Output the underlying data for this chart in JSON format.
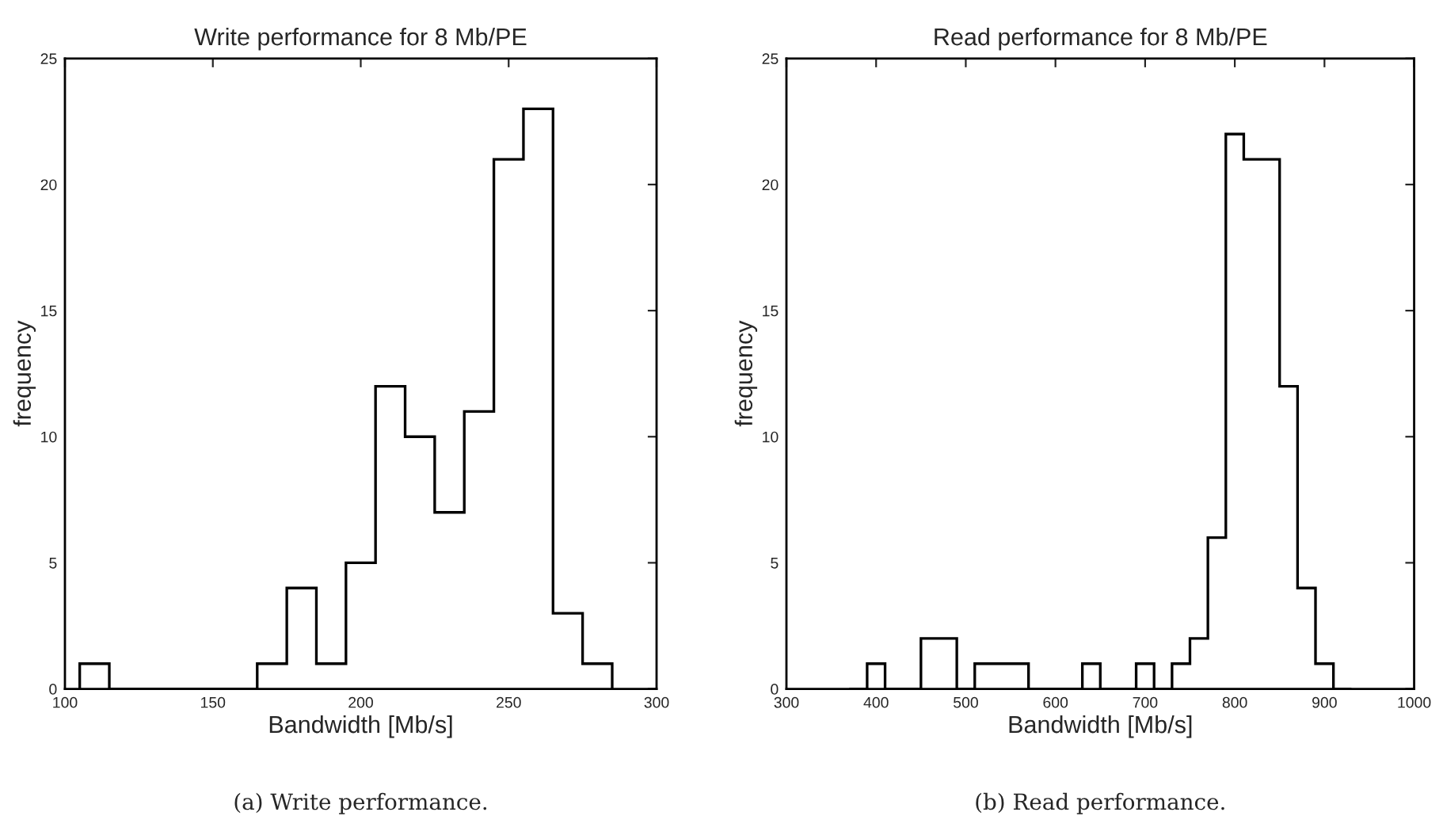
{
  "chart_data": [
    {
      "type": "histogram",
      "title": "Write performance for 8 Mb/PE",
      "xlabel": "Bandwidth [Mb/s]",
      "ylabel": "frequency",
      "color": "#000000",
      "bins": [
        105,
        115,
        125,
        135,
        145,
        155,
        165,
        175,
        185,
        195,
        205,
        215,
        225,
        235,
        245,
        255,
        265,
        275,
        285
      ],
      "values": [
        1,
        0,
        0,
        0,
        0,
        0,
        1,
        4,
        1,
        5,
        12,
        10,
        7,
        11,
        21,
        23,
        3,
        1
      ],
      "xlim": [
        100,
        300
      ],
      "xticks": [
        100,
        150,
        200,
        250,
        300
      ],
      "ylim": [
        0,
        25
      ],
      "yticks": [
        0,
        5,
        10,
        15,
        20,
        25
      ],
      "grid": false,
      "legend": false,
      "annotations": [
        "(a) Write performance."
      ]
    },
    {
      "type": "histogram",
      "title": "Read performance for 8 Mb/PE",
      "xlabel": "Bandwidth [Mb/s]",
      "ylabel": "frequency",
      "color": "#000000",
      "bins": [
        370,
        390,
        410,
        430,
        450,
        470,
        490,
        510,
        530,
        550,
        570,
        590,
        610,
        630,
        650,
        670,
        690,
        710,
        730,
        750,
        770,
        790,
        810,
        830,
        850,
        870,
        890,
        910,
        930
      ],
      "values": [
        0,
        1,
        0,
        0,
        2,
        2,
        0,
        1,
        1,
        1,
        0,
        0,
        0,
        1,
        0,
        0,
        1,
        0,
        1,
        2,
        6,
        22,
        21,
        21,
        12,
        4,
        1,
        0
      ],
      "xlim": [
        300,
        1000
      ],
      "xticks": [
        300,
        400,
        500,
        600,
        700,
        800,
        900,
        1000
      ],
      "ylim": [
        0,
        25
      ],
      "yticks": [
        0,
        5,
        10,
        15,
        20,
        25
      ],
      "grid": false,
      "legend": false,
      "annotations": [
        "(b) Read performance."
      ]
    }
  ]
}
